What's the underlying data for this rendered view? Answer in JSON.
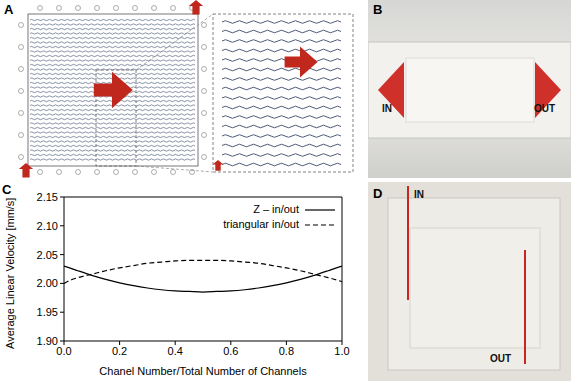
{
  "figure": {
    "panel_A": {
      "letter": "A"
    },
    "panel_B": {
      "letter": "B",
      "inlet_label": "IN",
      "outlet_label": "OUT"
    },
    "panel_C": {
      "letter": "C"
    },
    "panel_D": {
      "letter": "D",
      "inlet_label": "IN",
      "outlet_label": "OUT"
    }
  },
  "chart_data": {
    "type": "line",
    "x_label": "Chanel Number/Total Number of Channels",
    "y_label": "Average Linear Velocity [mm/s]",
    "x": [
      0,
      0.02,
      0.05,
      0.1,
      0.15,
      0.2,
      0.25,
      0.3,
      0.35,
      0.4,
      0.45,
      0.5,
      0.55,
      0.6,
      0.65,
      0.7,
      0.75,
      0.8,
      0.85,
      0.9,
      0.95,
      0.98,
      1.0
    ],
    "series": [
      {
        "name": "Z – in/out",
        "color": "#000000",
        "line_style": "solid",
        "values": [
          2.03,
          2.027,
          2.022,
          2.014,
          2.007,
          2.001,
          1.996,
          1.992,
          1.989,
          1.987,
          1.986,
          1.985,
          1.986,
          1.987,
          1.989,
          1.992,
          1.996,
          2.001,
          2.007,
          2.014,
          2.022,
          2.027,
          2.03
        ]
      },
      {
        "name": "triangular in/out",
        "color": "#000000",
        "line_style": "dashed",
        "values": [
          2.0,
          2.005,
          2.01,
          2.016,
          2.022,
          2.027,
          2.031,
          2.035,
          2.037,
          2.039,
          2.04,
          2.04,
          2.04,
          2.039,
          2.037,
          2.035,
          2.031,
          2.027,
          2.022,
          2.016,
          2.01,
          2.006,
          2.003
        ]
      }
    ],
    "xlim": [
      0,
      1
    ],
    "xticks": [
      {
        "value": 0,
        "label": "0.0"
      },
      {
        "value": 0.2,
        "label": "0.2"
      },
      {
        "value": 0.4,
        "label": "0.4"
      },
      {
        "value": 0.6,
        "label": "0.6"
      },
      {
        "value": 0.8,
        "label": "0.8"
      },
      {
        "value": 1,
        "label": "1.0"
      }
    ],
    "ylim": [
      1.9,
      2.15
    ],
    "yticks": [
      {
        "value": 1.9,
        "label": "1.90"
      },
      {
        "value": 1.95,
        "label": "1.95"
      },
      {
        "value": 2.0,
        "label": "2.00"
      },
      {
        "value": 2.05,
        "label": "2.05"
      },
      {
        "value": 2.1,
        "label": "2.10"
      },
      {
        "value": 2.15,
        "label": "2.15"
      }
    ],
    "legend": "upper right",
    "grid": false
  }
}
